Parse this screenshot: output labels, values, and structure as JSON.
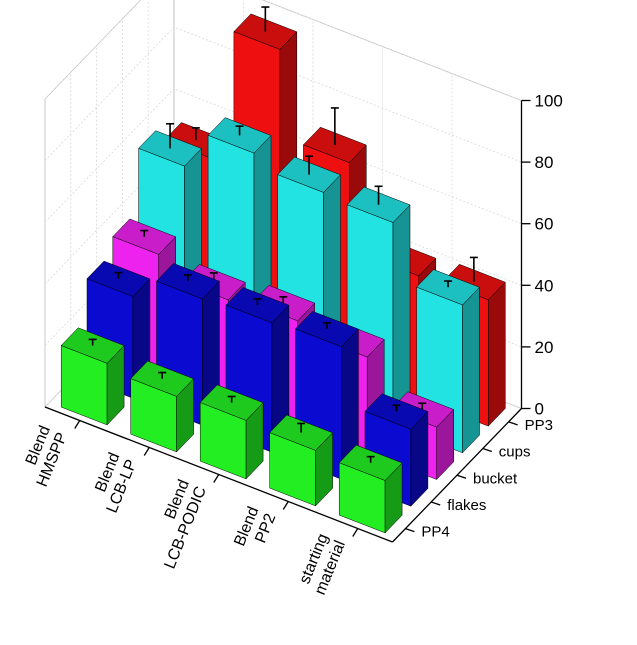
{
  "chart_data": {
    "type": "bar3d",
    "title": "",
    "zlabel": "",
    "zlim": [
      0,
      100
    ],
    "zticks": [
      0,
      20,
      40,
      60,
      80,
      100
    ],
    "categories": [
      [
        "Blend",
        "HMSPP"
      ],
      [
        "Blend",
        "LCB-LP"
      ],
      [
        "Blend",
        "LCB-PODIC"
      ],
      [
        "Blend",
        "PP2"
      ],
      [
        "starting",
        "material"
      ]
    ],
    "series": [
      {
        "name": "PP4",
        "color": "#22ee22",
        "values": [
          20,
          18,
          19,
          18,
          17
        ],
        "errors": [
          2,
          2,
          2,
          3,
          2
        ]
      },
      {
        "name": "flakes",
        "color": "#0a0ad0",
        "values": [
          33,
          41,
          42,
          43,
          25
        ],
        "errors": [
          2,
          2,
          2,
          2,
          2
        ]
      },
      {
        "name": "bucket",
        "color": "#ee22ee",
        "values": [
          38,
          32,
          34,
          31,
          17
        ],
        "errors": [
          2,
          3,
          2,
          3,
          2
        ]
      },
      {
        "name": "cups",
        "color": "#22e2e2",
        "values": [
          58,
          71,
          67,
          66,
          48
        ],
        "errors": [
          8,
          3,
          6,
          6,
          2
        ]
      },
      {
        "name": "PP3",
        "color": "#ee1010",
        "values": [
          52,
          96,
          68,
          40,
          41
        ],
        "errors": [
          4,
          8,
          12,
          8,
          8
        ]
      }
    ]
  }
}
